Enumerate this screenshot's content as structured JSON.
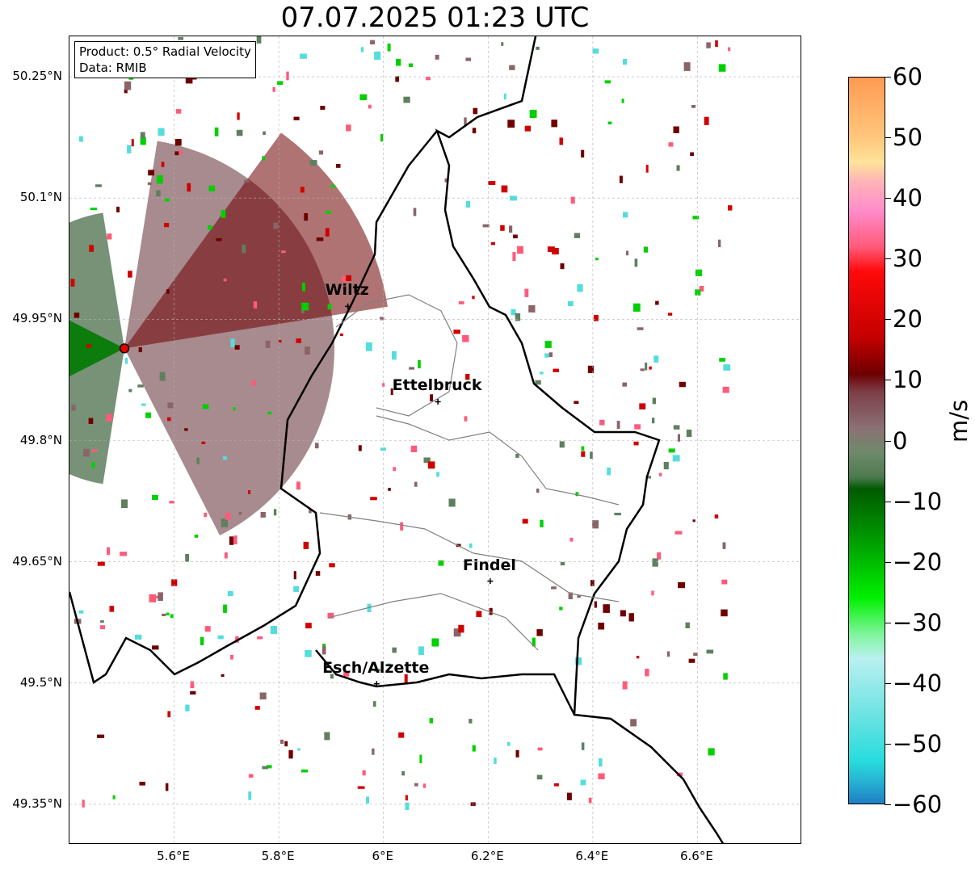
{
  "title": "07.07.2025 01:23 UTC",
  "info": {
    "product": "Product: 0.5° Radial Velocity",
    "data": "Data: RMIB"
  },
  "map": {
    "lon_range": [
      5.4,
      6.8
    ],
    "lat_range": [
      49.3,
      50.3
    ],
    "lat_ticks": [
      {
        "value": 50.25,
        "label": "50.25°N"
      },
      {
        "value": 50.1,
        "label": "50.1°N"
      },
      {
        "value": 49.95,
        "label": "49.95°N"
      },
      {
        "value": 49.8,
        "label": "49.8°N"
      },
      {
        "value": 49.65,
        "label": "49.65°N"
      },
      {
        "value": 49.5,
        "label": "49.5°N"
      },
      {
        "value": 49.35,
        "label": "49.35°N"
      }
    ],
    "lon_ticks": [
      {
        "value": 5.6,
        "label": "5.6°E"
      },
      {
        "value": 5.8,
        "label": "5.8°E"
      },
      {
        "value": 6.0,
        "label": "6°E"
      },
      {
        "value": 6.2,
        "label": "6.2°E"
      },
      {
        "value": 6.4,
        "label": "6.4°E"
      },
      {
        "value": 6.6,
        "label": "6.6°E"
      }
    ],
    "gridlines": true,
    "radar_site": {
      "lon": 5.505,
      "lat": 49.914
    },
    "cities": [
      {
        "name": "Wiltz",
        "lon": 5.932,
        "lat": 49.966
      },
      {
        "name": "Ettelbruck",
        "lon": 6.104,
        "lat": 49.848
      },
      {
        "name": "Findel",
        "lon": 6.204,
        "lat": 49.626
      },
      {
        "name": "Esch/Alzette",
        "lon": 5.987,
        "lat": 49.499
      }
    ]
  },
  "colorbar": {
    "unit": "m/s",
    "min": -60,
    "max": 60,
    "ticks": [
      {
        "value": 60,
        "label": "60"
      },
      {
        "value": 50,
        "label": "50"
      },
      {
        "value": 40,
        "label": "40"
      },
      {
        "value": 30,
        "label": "30"
      },
      {
        "value": 20,
        "label": "20"
      },
      {
        "value": 10,
        "label": "10"
      },
      {
        "value": 0,
        "label": "0"
      },
      {
        "value": -10,
        "label": "−10"
      },
      {
        "value": -20,
        "label": "−20"
      },
      {
        "value": -30,
        "label": "−30"
      },
      {
        "value": -40,
        "label": "−40"
      },
      {
        "value": -50,
        "label": "−50"
      },
      {
        "value": -60,
        "label": "−60"
      }
    ],
    "stops": [
      {
        "value": 60,
        "color": "#ff9a52"
      },
      {
        "value": 50,
        "color": "#ffc77d"
      },
      {
        "value": 46,
        "color": "#ffe39a"
      },
      {
        "value": 43,
        "color": "#ffb6b6"
      },
      {
        "value": 38,
        "color": "#ff8ccb"
      },
      {
        "value": 32,
        "color": "#ff5a7a"
      },
      {
        "value": 28,
        "color": "#ff0a0a"
      },
      {
        "value": 17,
        "color": "#c40000"
      },
      {
        "value": 11,
        "color": "#6e0000"
      },
      {
        "value": 8,
        "color": "#7d3f49"
      },
      {
        "value": 2,
        "color": "#8b7175"
      },
      {
        "value": -2,
        "color": "#6e8a6a"
      },
      {
        "value": -6,
        "color": "#4e7a50"
      },
      {
        "value": -8,
        "color": "#005a00"
      },
      {
        "value": -18,
        "color": "#00a800"
      },
      {
        "value": -26,
        "color": "#00f000"
      },
      {
        "value": -32,
        "color": "#7ff59b"
      },
      {
        "value": -36,
        "color": "#b9f0f0"
      },
      {
        "value": -45,
        "color": "#6fe3e3"
      },
      {
        "value": -53,
        "color": "#27dcdc"
      },
      {
        "value": -56,
        "color": "#27b6d4"
      },
      {
        "value": -60,
        "color": "#1f7fc4"
      }
    ]
  },
  "colors": {
    "inbound_strong": "#6e0000",
    "near_zero_outbound": "#8b6468",
    "near_zero_inbound": "#5f7f5f",
    "strong_green": "#007a00",
    "border_country": "#000000",
    "border_canton": "#808080",
    "radar_marker": "#e00000"
  }
}
